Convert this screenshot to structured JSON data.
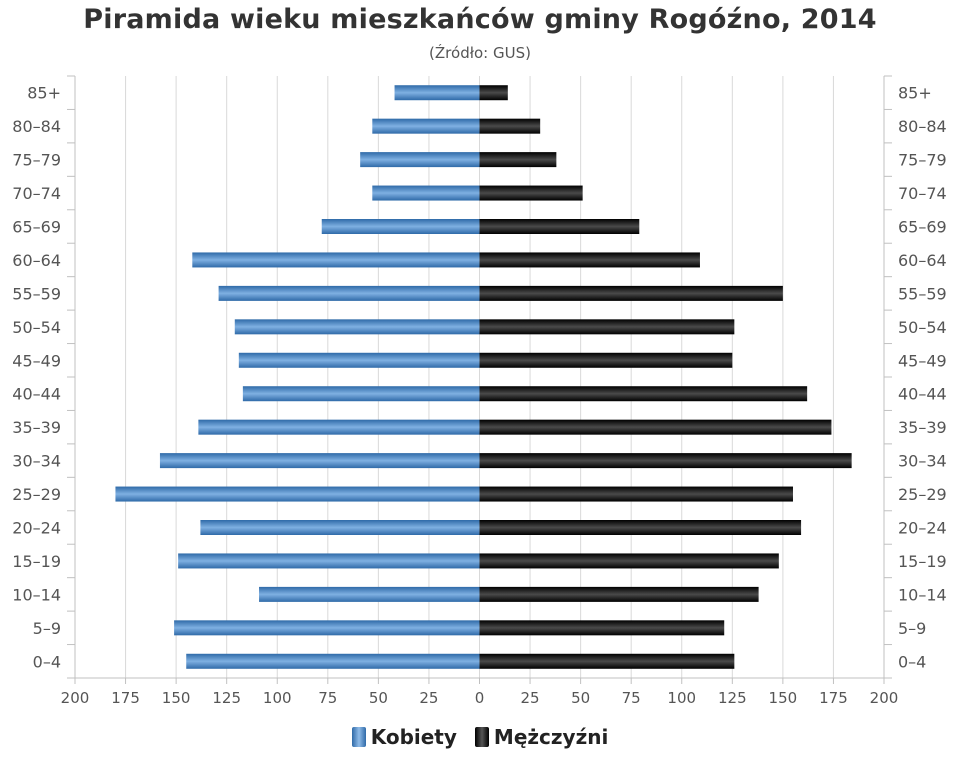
{
  "chart_data": {
    "type": "bar",
    "orientation": "horizontal-pyramid",
    "title": "Piramida wieku mieszkańców gminy Rogóźno, 2014",
    "subtitle": "(Źródło: GUS)",
    "categories": [
      "0–4",
      "5–9",
      "10–14",
      "15–19",
      "20–24",
      "25–29",
      "30–34",
      "35–39",
      "40–44",
      "45–49",
      "50–54",
      "55–59",
      "60–64",
      "65–69",
      "70–74",
      "75–79",
      "80–84",
      "85+"
    ],
    "series": [
      {
        "name": "Kobiety",
        "side": "left",
        "color": "#3a78b8",
        "values": [
          145,
          151,
          109,
          149,
          138,
          180,
          158,
          139,
          117,
          119,
          121,
          129,
          142,
          78,
          53,
          59,
          53,
          42
        ]
      },
      {
        "name": "Mężczyźni",
        "side": "right",
        "color": "#111111",
        "values": [
          126,
          121,
          138,
          148,
          159,
          155,
          184,
          174,
          162,
          125,
          126,
          150,
          109,
          79,
          51,
          38,
          30,
          14
        ]
      }
    ],
    "xlim": [
      -200,
      200
    ],
    "xticks": [
      "200",
      "175",
      "150",
      "125",
      "100",
      "75",
      "50",
      "25",
      "0",
      "25",
      "50",
      "75",
      "100",
      "125",
      "150",
      "175",
      "200"
    ],
    "grid": true,
    "legend": "bottom-center"
  }
}
